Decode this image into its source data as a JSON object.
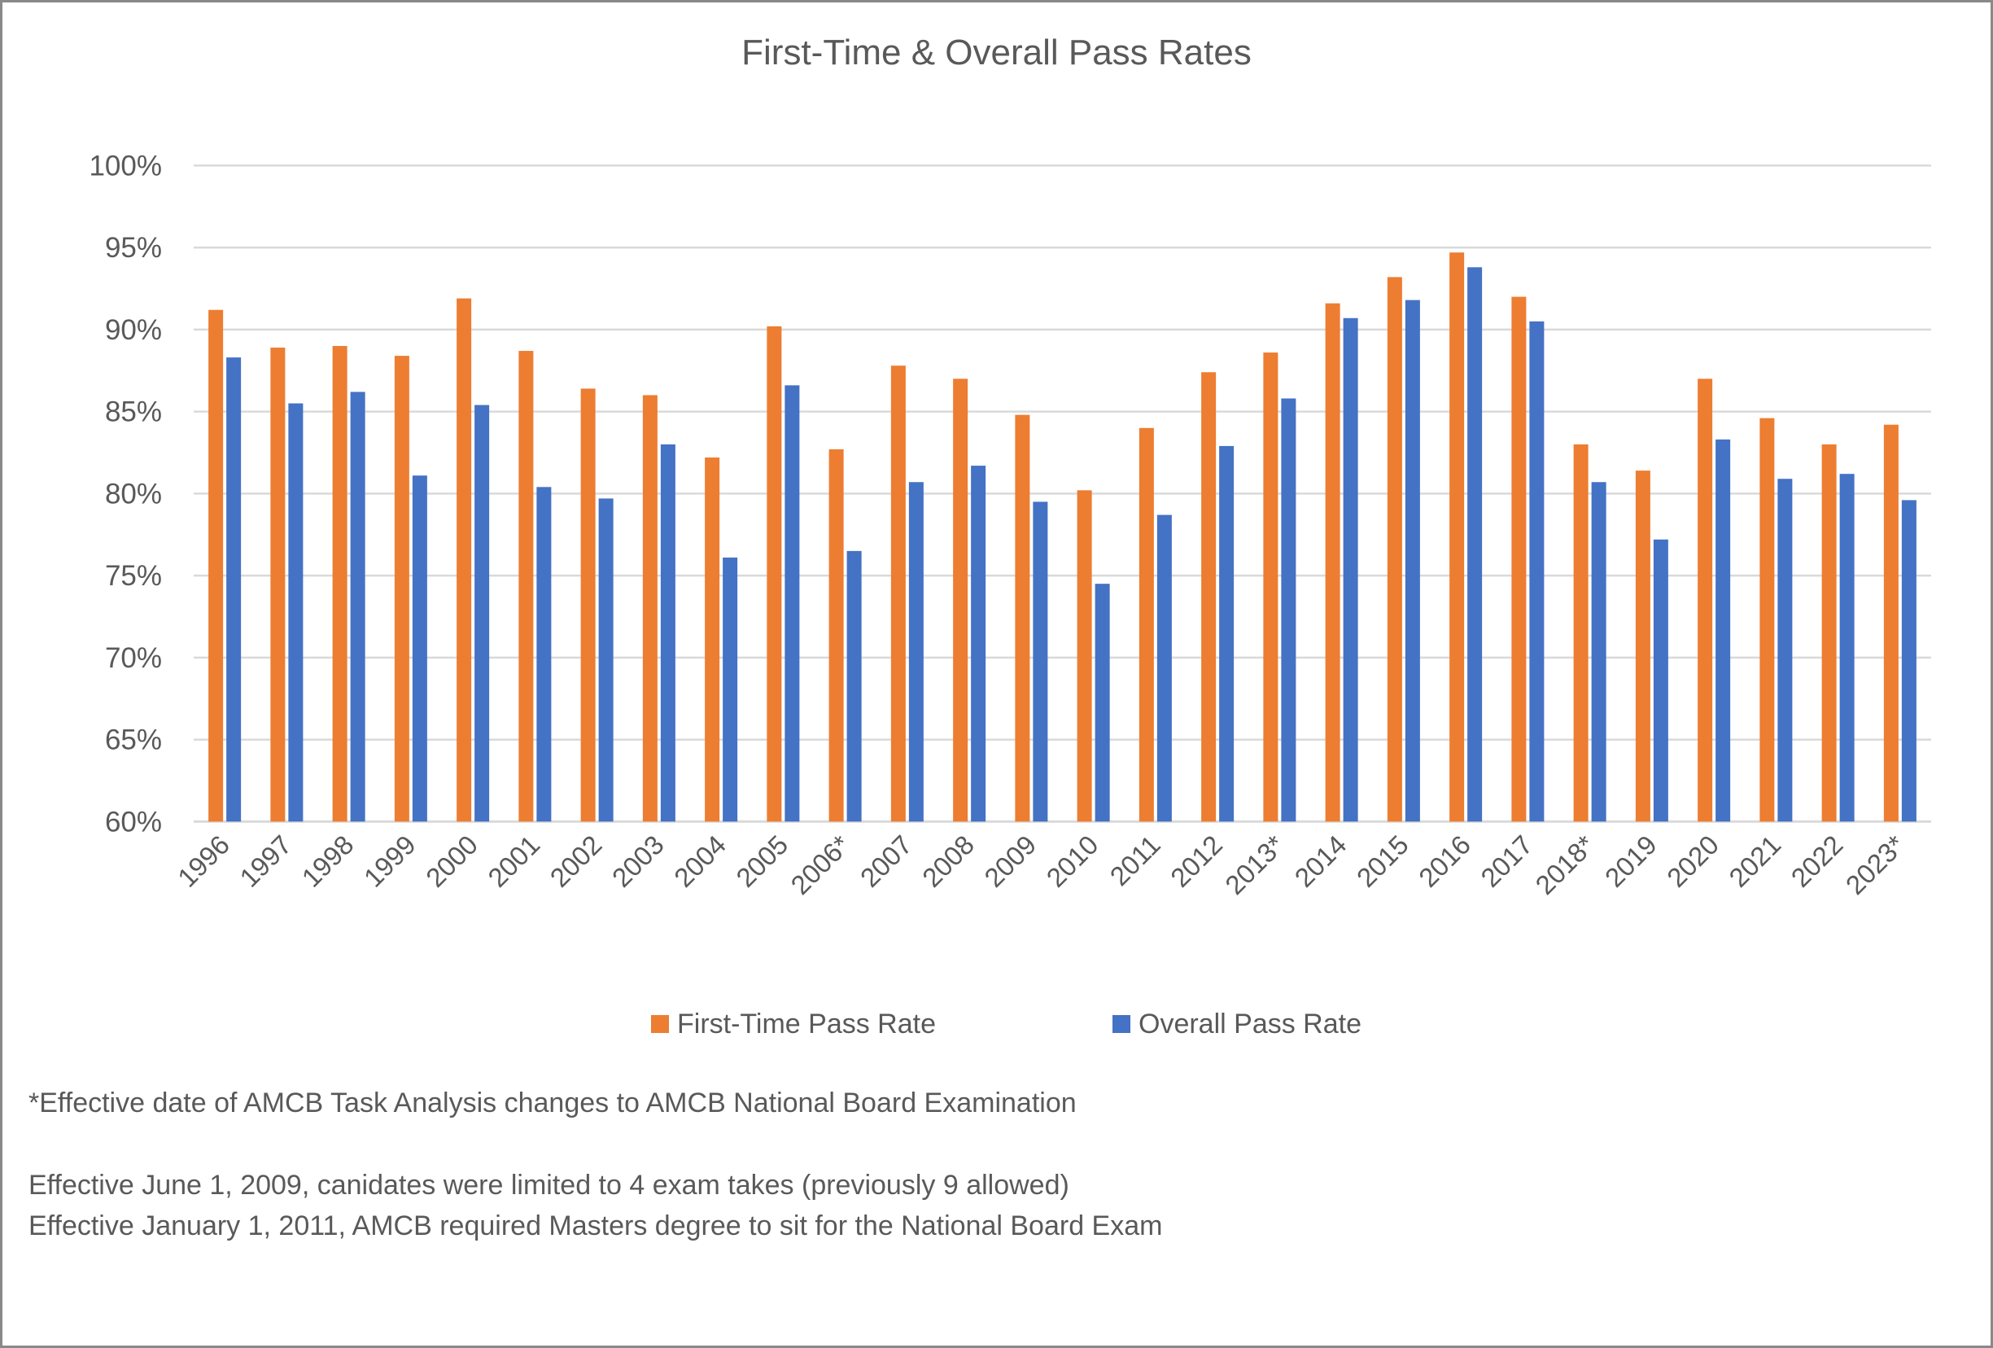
{
  "chart_data": {
    "type": "bar",
    "title": "First-Time & Overall Pass Rates",
    "xlabel": "",
    "ylabel": "",
    "ylim": [
      60,
      100
    ],
    "yticks": [
      "60%",
      "65%",
      "70%",
      "75%",
      "80%",
      "85%",
      "90%",
      "95%",
      "100%"
    ],
    "ytick_values": [
      60,
      65,
      70,
      75,
      80,
      85,
      90,
      95,
      100
    ],
    "grid": true,
    "legend_position": "bottom",
    "categories": [
      "1996",
      "1997",
      "1998",
      "1999",
      "2000",
      "2001",
      "2002",
      "2003",
      "2004",
      "2005",
      "2006*",
      "2007",
      "2008",
      "2009",
      "2010",
      "2011",
      "2012",
      "2013*",
      "2014",
      "2015",
      "2016",
      "2017",
      "2018*",
      "2019",
      "2020",
      "2021",
      "2022",
      "2023*"
    ],
    "series": [
      {
        "name": "First-Time Pass Rate",
        "color": "#ED7D31",
        "values": [
          91.2,
          88.9,
          89.0,
          88.4,
          91.9,
          88.7,
          86.4,
          86.0,
          82.2,
          90.2,
          82.7,
          87.8,
          87.0,
          84.8,
          80.2,
          84.0,
          87.4,
          88.6,
          91.6,
          93.2,
          94.7,
          92.0,
          83.0,
          81.4,
          87.0,
          84.6,
          83.0,
          84.2
        ]
      },
      {
        "name": "Overall Pass Rate",
        "color": "#4472C4",
        "values": [
          88.3,
          85.5,
          86.2,
          81.1,
          85.4,
          80.4,
          79.7,
          83.0,
          76.1,
          86.6,
          76.5,
          80.7,
          81.7,
          79.5,
          74.5,
          78.7,
          82.9,
          85.8,
          90.7,
          91.8,
          93.8,
          90.5,
          80.7,
          77.2,
          83.3,
          80.9,
          81.2,
          79.6
        ]
      }
    ],
    "gridline_color": "#D9D9D9"
  },
  "footnotes": {
    "asterisk_note": "*Effective date of AMCB Task Analysis changes to AMCB National Board Examination",
    "note_2009": "Effective June 1, 2009, canidates were limited to 4 exam takes (previously 9 allowed)",
    "note_2011": "Effective January 1, 2011, AMCB required Masters degree to sit for the National Board Exam"
  }
}
